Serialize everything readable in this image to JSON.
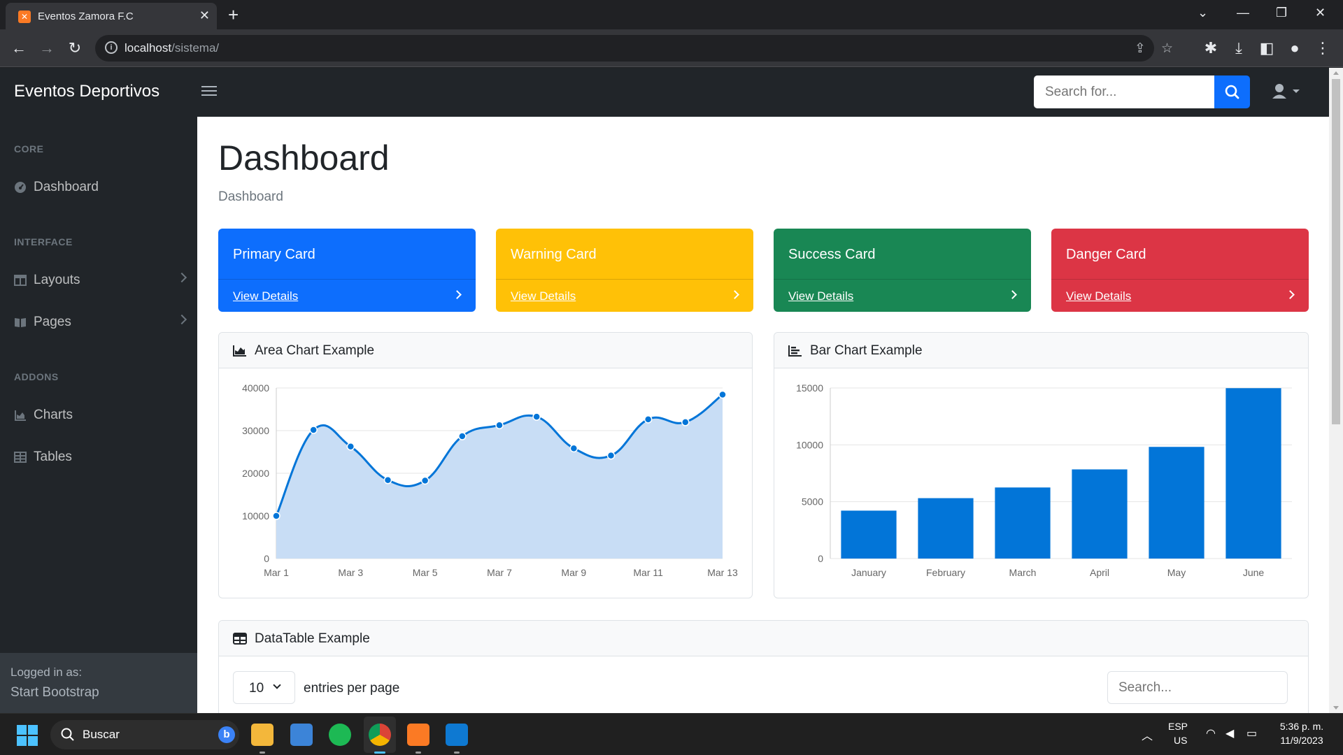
{
  "browser": {
    "tab_title": "Eventos Zamora F.C",
    "url_host": "localhost",
    "url_path": "/sistema/"
  },
  "navbar": {
    "brand": "Eventos Deportivos",
    "search_placeholder": "Search for..."
  },
  "sidebar": {
    "sections": [
      {
        "heading": "CORE",
        "items": [
          {
            "label": "Dashboard",
            "icon": "dashboard-icon"
          }
        ]
      },
      {
        "heading": "INTERFACE",
        "items": [
          {
            "label": "Layouts",
            "icon": "columns-icon"
          },
          {
            "label": "Pages",
            "icon": "book-icon"
          }
        ]
      },
      {
        "heading": "ADDONS",
        "items": [
          {
            "label": "Charts",
            "icon": "chart-area-icon"
          },
          {
            "label": "Tables",
            "icon": "table-icon"
          }
        ]
      }
    ],
    "footer_small": "Logged in as:",
    "footer_name": "Start Bootstrap"
  },
  "main": {
    "title": "Dashboard",
    "breadcrumb": "Dashboard",
    "cards": [
      {
        "title": "Primary Card",
        "link": "View Details",
        "color": "#0d6efd",
        "text_color": "#ffffff"
      },
      {
        "title": "Warning Card",
        "link": "View Details",
        "color": "#ffc107",
        "text_color": "#ffffff"
      },
      {
        "title": "Success Card",
        "link": "View Details",
        "color": "#198754",
        "text_color": "#ffffff"
      },
      {
        "title": "Danger Card",
        "link": "View Details",
        "color": "#dc3545",
        "text_color": "#ffffff"
      }
    ],
    "area_chart_title": "Area Chart Example",
    "bar_chart_title": "Bar Chart Example",
    "datatable": {
      "title": "DataTable Example",
      "entries_value": "10",
      "entries_label": "entries per page",
      "search_placeholder": "Search..."
    }
  },
  "chart_data": [
    {
      "type": "area",
      "title": "Area Chart Example",
      "x": [
        "Mar 1",
        "Mar 2",
        "Mar 3",
        "Mar 4",
        "Mar 5",
        "Mar 6",
        "Mar 7",
        "Mar 8",
        "Mar 9",
        "Mar 10",
        "Mar 11",
        "Mar 12",
        "Mar 13"
      ],
      "x_tick_labels": [
        "Mar 1",
        "Mar 3",
        "Mar 5",
        "Mar 7",
        "Mar 9",
        "Mar 11",
        "Mar 13"
      ],
      "values": [
        10000,
        30162,
        26263,
        18394,
        18287,
        28682,
        31274,
        33259,
        25849,
        24159,
        32651,
        31984,
        38451
      ],
      "ylim": [
        0,
        40000
      ],
      "y_ticks": [
        0,
        10000,
        20000,
        30000,
        40000
      ],
      "grid": true,
      "line_color": "#0275d8",
      "fill_color": "#c8ddf5"
    },
    {
      "type": "bar",
      "title": "Bar Chart Example",
      "categories": [
        "January",
        "February",
        "March",
        "April",
        "May",
        "June"
      ],
      "values": [
        4215,
        5312,
        6251,
        7841,
        9821,
        14984
      ],
      "ylim": [
        0,
        15000
      ],
      "y_ticks": [
        0,
        5000,
        10000,
        15000
      ],
      "grid": true,
      "bar_color": "#0275d8"
    }
  ],
  "taskbar": {
    "search_label": "Buscar",
    "lang_top": "ESP",
    "lang_bottom": "US",
    "time": "5:36 p. m.",
    "date": "11/9/2023"
  }
}
